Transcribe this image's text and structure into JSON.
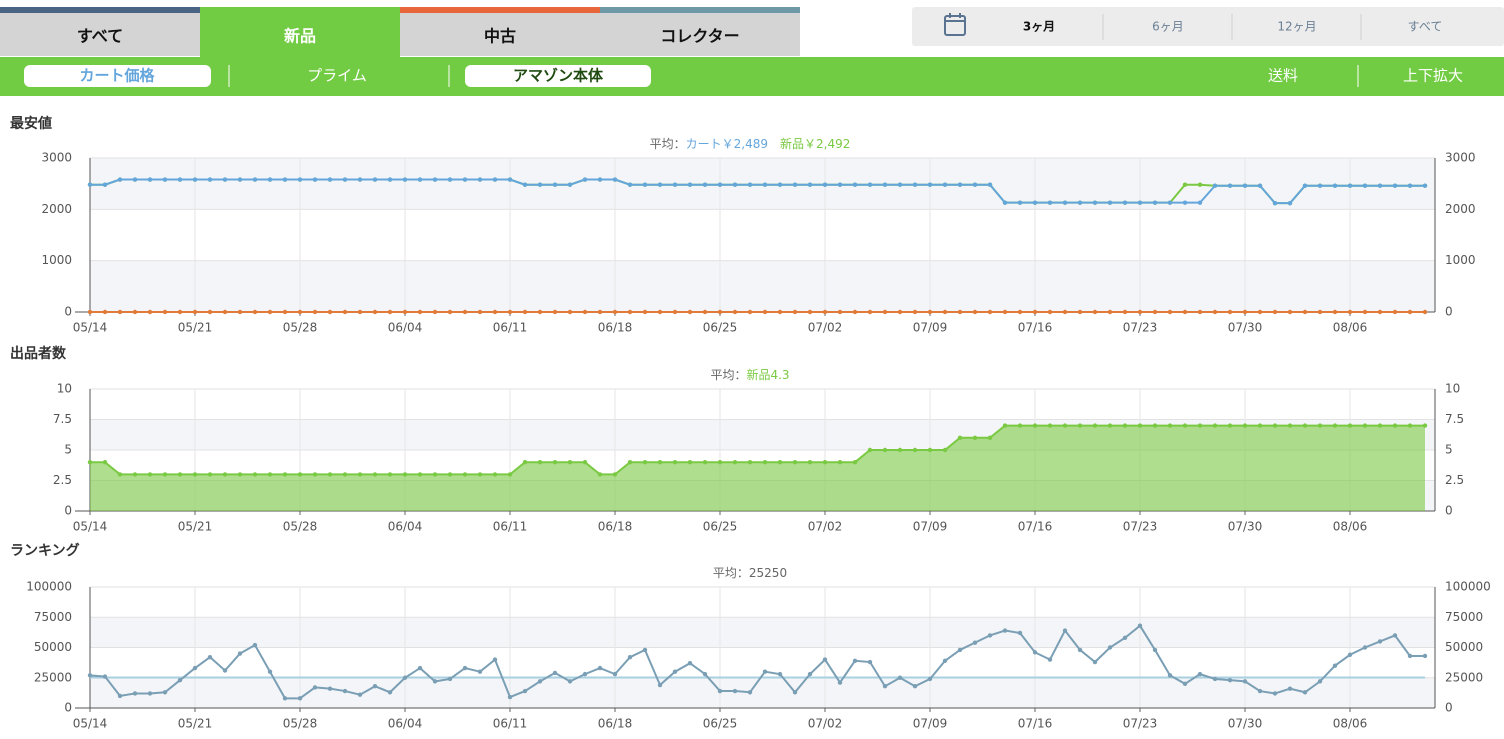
{
  "ui": {
    "tabs": [
      "すべて",
      "中古",
      "コレクター"
    ],
    "periods": [
      "3ヶ月",
      "6ヶ月",
      "12ヶ月",
      "すべて"
    ],
    "buttons": [
      "プライム",
      "送料",
      "上下拡大"
    ]
  },
  "chart_data": [
    {
      "type": "line",
      "title": "最安値",
      "subtitle": [
        "平均：",
        "カート￥2,489",
        "新品￥2,492"
      ],
      "x": [
        "05/14",
        "05/15",
        "05/16",
        "05/17",
        "05/18",
        "05/19",
        "05/20",
        "05/21",
        "05/22",
        "05/23",
        "05/24",
        "05/25",
        "05/26",
        "05/27",
        "05/28",
        "05/29",
        "05/30",
        "05/31",
        "06/01",
        "06/02",
        "06/03",
        "06/04",
        "06/05",
        "06/06",
        "06/07",
        "06/08",
        "06/09",
        "06/10",
        "06/11",
        "06/12",
        "06/13",
        "06/14",
        "06/15",
        "06/16",
        "06/17",
        "06/18",
        "06/19",
        "06/20",
        "06/21",
        "06/22",
        "06/23",
        "06/24",
        "06/25",
        "06/26",
        "06/27",
        "06/28",
        "06/29",
        "06/30",
        "07/01",
        "07/02",
        "07/03",
        "07/04",
        "07/05",
        "07/06",
        "07/07",
        "07/08",
        "07/09",
        "07/10",
        "07/11",
        "07/12",
        "07/13",
        "07/14",
        "07/15",
        "07/16",
        "07/17",
        "07/18",
        "07/19",
        "07/20",
        "07/21",
        "07/22",
        "07/23",
        "07/24",
        "07/25",
        "07/26",
        "07/27",
        "07/28",
        "07/29",
        "07/30",
        "07/31",
        "08/01",
        "08/02",
        "08/03",
        "08/04",
        "08/05",
        "08/06",
        "08/07",
        "08/08",
        "08/09",
        "08/10",
        "08/11"
      ],
      "xticks": [
        "05/14",
        "05/21",
        "05/28",
        "06/04",
        "06/11",
        "06/18",
        "06/25",
        "07/02",
        "07/09",
        "07/16",
        "07/23",
        "07/30",
        "08/06"
      ],
      "ylim": [
        0,
        3000
      ],
      "yticks": [
        0,
        1000,
        2000,
        3000
      ],
      "series": [
        {
          "name": "カート価格",
          "color": "#64a6dc",
          "values": [
            2480,
            2480,
            2580,
            2580,
            2580,
            2580,
            2580,
            2580,
            2580,
            2580,
            2580,
            2580,
            2580,
            2580,
            2580,
            2580,
            2580,
            2580,
            2580,
            2580,
            2580,
            2580,
            2580,
            2580,
            2580,
            2580,
            2580,
            2580,
            2580,
            2480,
            2480,
            2480,
            2480,
            2580,
            2580,
            2580,
            2480,
            2480,
            2480,
            2480,
            2480,
            2480,
            2480,
            2480,
            2480,
            2480,
            2480,
            2480,
            2480,
            2480,
            2480,
            2480,
            2480,
            2480,
            2480,
            2480,
            2480,
            2480,
            2480,
            2480,
            2480,
            2130,
            2130,
            2130,
            2130,
            2130,
            2130,
            2130,
            2130,
            2130,
            2130,
            2130,
            2130,
            2130,
            2130,
            2460,
            2460,
            2460,
            2460,
            2120,
            2120,
            2460,
            2460,
            2460,
            2460,
            2460,
            2460,
            2460,
            2460,
            2460
          ]
        },
        {
          "name": "新品",
          "color": "#7ac943",
          "values": [
            2480,
            2480,
            2580,
            2580,
            2580,
            2580,
            2580,
            2580,
            2580,
            2580,
            2580,
            2580,
            2580,
            2580,
            2580,
            2580,
            2580,
            2580,
            2580,
            2580,
            2580,
            2580,
            2580,
            2580,
            2580,
            2580,
            2580,
            2580,
            2580,
            2480,
            2480,
            2480,
            2480,
            2580,
            2580,
            2580,
            2480,
            2480,
            2480,
            2480,
            2480,
            2480,
            2480,
            2480,
            2480,
            2480,
            2480,
            2480,
            2480,
            2480,
            2480,
            2480,
            2480,
            2480,
            2480,
            2480,
            2480,
            2480,
            2480,
            2480,
            2480,
            2130,
            2130,
            2130,
            2130,
            2130,
            2130,
            2130,
            2130,
            2130,
            2130,
            2130,
            2130,
            2480,
            2480,
            2460,
            2460,
            2460,
            2460,
            2120,
            2120,
            2460,
            2460,
            2460,
            2460,
            2460,
            2460,
            2460,
            2460,
            2460
          ]
        },
        {
          "name": "アマゾン本体",
          "color": "#e07b39",
          "values": [
            0,
            0,
            0,
            0,
            0,
            0,
            0,
            0,
            0,
            0,
            0,
            0,
            0,
            0,
            0,
            0,
            0,
            0,
            0,
            0,
            0,
            0,
            0,
            0,
            0,
            0,
            0,
            0,
            0,
            0,
            0,
            0,
            0,
            0,
            0,
            0,
            0,
            0,
            0,
            0,
            0,
            0,
            0,
            0,
            0,
            0,
            0,
            0,
            0,
            0,
            0,
            0,
            0,
            0,
            0,
            0,
            0,
            0,
            0,
            0,
            0,
            0,
            0,
            0,
            0,
            0,
            0,
            0,
            0,
            0,
            0,
            0,
            0,
            0,
            0,
            0,
            0,
            0,
            0,
            0,
            0,
            0,
            0,
            0,
            0,
            0,
            0,
            0,
            0,
            0
          ]
        }
      ]
    },
    {
      "type": "area",
      "title": "出品者数",
      "subtitle": [
        "平均：",
        "新品4.3"
      ],
      "color": "#7ac943",
      "x": [
        "05/14",
        "05/15",
        "05/16",
        "05/17",
        "05/18",
        "05/19",
        "05/20",
        "05/21",
        "05/22",
        "05/23",
        "05/24",
        "05/25",
        "05/26",
        "05/27",
        "05/28",
        "05/29",
        "05/30",
        "05/31",
        "06/01",
        "06/02",
        "06/03",
        "06/04",
        "06/05",
        "06/06",
        "06/07",
        "06/08",
        "06/09",
        "06/10",
        "06/11",
        "06/12",
        "06/13",
        "06/14",
        "06/15",
        "06/16",
        "06/17",
        "06/18",
        "06/19",
        "06/20",
        "06/21",
        "06/22",
        "06/23",
        "06/24",
        "06/25",
        "06/26",
        "06/27",
        "06/28",
        "06/29",
        "06/30",
        "07/01",
        "07/02",
        "07/03",
        "07/04",
        "07/05",
        "07/06",
        "07/07",
        "07/08",
        "07/09",
        "07/10",
        "07/11",
        "07/12",
        "07/13",
        "07/14",
        "07/15",
        "07/16",
        "07/17",
        "07/18",
        "07/19",
        "07/20",
        "07/21",
        "07/22",
        "07/23",
        "07/24",
        "07/25",
        "07/26",
        "07/27",
        "07/28",
        "07/29",
        "07/30",
        "07/31",
        "08/01",
        "08/02",
        "08/03",
        "08/04",
        "08/05",
        "08/06",
        "08/07",
        "08/08",
        "08/09",
        "08/10",
        "08/11"
      ],
      "xticks": [
        "05/14",
        "05/21",
        "05/28",
        "06/04",
        "06/11",
        "06/18",
        "06/25",
        "07/02",
        "07/09",
        "07/16",
        "07/23",
        "07/30",
        "08/06"
      ],
      "ylim": [
        0,
        10
      ],
      "yticks": [
        0,
        2.5,
        5,
        7.5,
        10
      ],
      "values": [
        4,
        4,
        3,
        3,
        3,
        3,
        3,
        3,
        3,
        3,
        3,
        3,
        3,
        3,
        3,
        3,
        3,
        3,
        3,
        3,
        3,
        3,
        3,
        3,
        3,
        3,
        3,
        3,
        3,
        4,
        4,
        4,
        4,
        4,
        3,
        3,
        4,
        4,
        4,
        4,
        4,
        4,
        4,
        4,
        4,
        4,
        4,
        4,
        4,
        4,
        4,
        4,
        5,
        5,
        5,
        5,
        5,
        5,
        6,
        6,
        6,
        7,
        7,
        7,
        7,
        7,
        7,
        7,
        7,
        7,
        7,
        7,
        7,
        7,
        7,
        7,
        7,
        7,
        7,
        7,
        7,
        7,
        7,
        7,
        7,
        7,
        7,
        7,
        7,
        7
      ]
    },
    {
      "type": "line",
      "title": "ランキング",
      "subtitle": [
        "平均：25250"
      ],
      "color": "#7a9fb5",
      "average": 25250,
      "average_color": "#a9d0e0",
      "x": [
        "05/14",
        "05/15",
        "05/16",
        "05/17",
        "05/18",
        "05/19",
        "05/20",
        "05/21",
        "05/22",
        "05/23",
        "05/24",
        "05/25",
        "05/26",
        "05/27",
        "05/28",
        "05/29",
        "05/30",
        "05/31",
        "06/01",
        "06/02",
        "06/03",
        "06/04",
        "06/05",
        "06/06",
        "06/07",
        "06/08",
        "06/09",
        "06/10",
        "06/11",
        "06/12",
        "06/13",
        "06/14",
        "06/15",
        "06/16",
        "06/17",
        "06/18",
        "06/19",
        "06/20",
        "06/21",
        "06/22",
        "06/23",
        "06/24",
        "06/25",
        "06/26",
        "06/27",
        "06/28",
        "06/29",
        "06/30",
        "07/01",
        "07/02",
        "07/03",
        "07/04",
        "07/05",
        "07/06",
        "07/07",
        "07/08",
        "07/09",
        "07/10",
        "07/11",
        "07/12",
        "07/13",
        "07/14",
        "07/15",
        "07/16",
        "07/17",
        "07/18",
        "07/19",
        "07/20",
        "07/21",
        "07/22",
        "07/23",
        "07/24",
        "07/25",
        "07/26",
        "07/27",
        "07/28",
        "07/29",
        "07/30",
        "07/31",
        "08/01",
        "08/02",
        "08/03",
        "08/04",
        "08/05",
        "08/06",
        "08/07",
        "08/08",
        "08/09",
        "08/10",
        "08/11"
      ],
      "xticks": [
        "05/14",
        "05/21",
        "05/28",
        "06/04",
        "06/11",
        "06/18",
        "06/25",
        "07/02",
        "07/09",
        "07/16",
        "07/23",
        "07/30",
        "08/06"
      ],
      "ylim": [
        0,
        100000
      ],
      "yticks": [
        0,
        25000,
        50000,
        75000,
        100000
      ],
      "values": [
        27000,
        26000,
        10000,
        12000,
        12000,
        13000,
        23000,
        33000,
        42000,
        31000,
        45000,
        52000,
        30000,
        8000,
        8000,
        17000,
        16000,
        14000,
        11000,
        18000,
        13000,
        25000,
        33000,
        22000,
        24000,
        33000,
        30000,
        40000,
        9000,
        14000,
        22000,
        29000,
        22000,
        28000,
        33000,
        28000,
        42000,
        48000,
        19000,
        30000,
        37000,
        28000,
        14000,
        14000,
        13000,
        30000,
        28000,
        13000,
        28000,
        40000,
        21000,
        39000,
        38000,
        18000,
        25000,
        18000,
        24000,
        39000,
        48000,
        54000,
        60000,
        64000,
        62000,
        46000,
        40000,
        64000,
        48000,
        38000,
        50000,
        58000,
        68000,
        48000,
        27000,
        20000,
        28000,
        24000,
        23000,
        22000,
        14000,
        12000,
        16000,
        13000,
        22000,
        35000,
        44000,
        50000,
        55000,
        60000,
        43000,
        43000
      ]
    }
  ]
}
